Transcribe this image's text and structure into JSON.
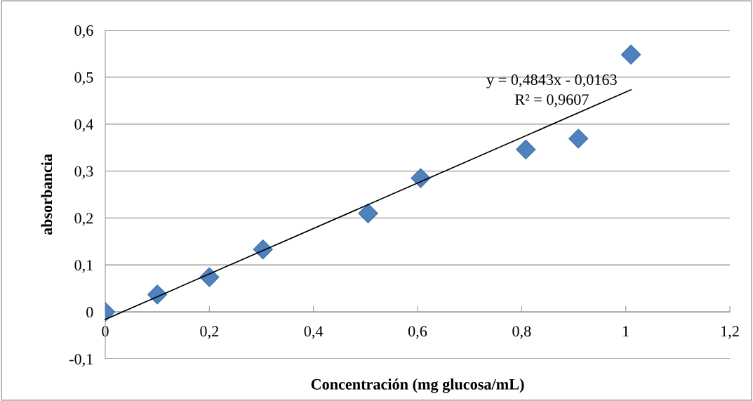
{
  "chart_data": {
    "type": "scatter",
    "xlabel": "Concentración (mg glucosa/mL)",
    "ylabel": "absorbancia",
    "series": [
      {
        "color": "#4f81bd",
        "marker": "diamond",
        "x": [
          0,
          0.1,
          0.2,
          0.303,
          0.505,
          0.606,
          0.808,
          0.909,
          1.01
        ],
        "values": [
          0,
          0.037,
          0.074,
          0.133,
          0.21,
          0.285,
          0.346,
          0.369,
          0.548
        ]
      },
      {
        "type": "line",
        "color": "#000000",
        "marker": "none",
        "line_style": "solid",
        "x": [
          0,
          1.01
        ],
        "values": [
          -0.016,
          0.473
        ]
      }
    ],
    "annotations": [
      "y = 0,4843x - 0,0163",
      "R² = 0,9607"
    ],
    "xlim": [
      0,
      1.2
    ],
    "ylim": [
      -0.1,
      0.6
    ],
    "xticks": [
      0,
      {
        "value": 0.2,
        "label": "0,2"
      },
      {
        "value": 0.4,
        "label": "0,4"
      },
      {
        "value": 0.6,
        "label": "0,6"
      },
      {
        "value": 0.8,
        "label": "0,8"
      },
      1,
      {
        "value": 1.2,
        "label": "1,2"
      }
    ],
    "yticks": [
      {
        "value": -0.1,
        "label": "-0,1"
      },
      0,
      {
        "value": 0.1,
        "label": "0,1"
      },
      {
        "value": 0.2,
        "label": "0,2"
      },
      {
        "value": 0.3,
        "label": "0,3"
      },
      {
        "value": 0.4,
        "label": "0,4"
      },
      {
        "value": 0.5,
        "label": "0,5"
      },
      {
        "value": 0.6,
        "label": "0,6"
      }
    ],
    "grid": "y",
    "legend": false
  }
}
